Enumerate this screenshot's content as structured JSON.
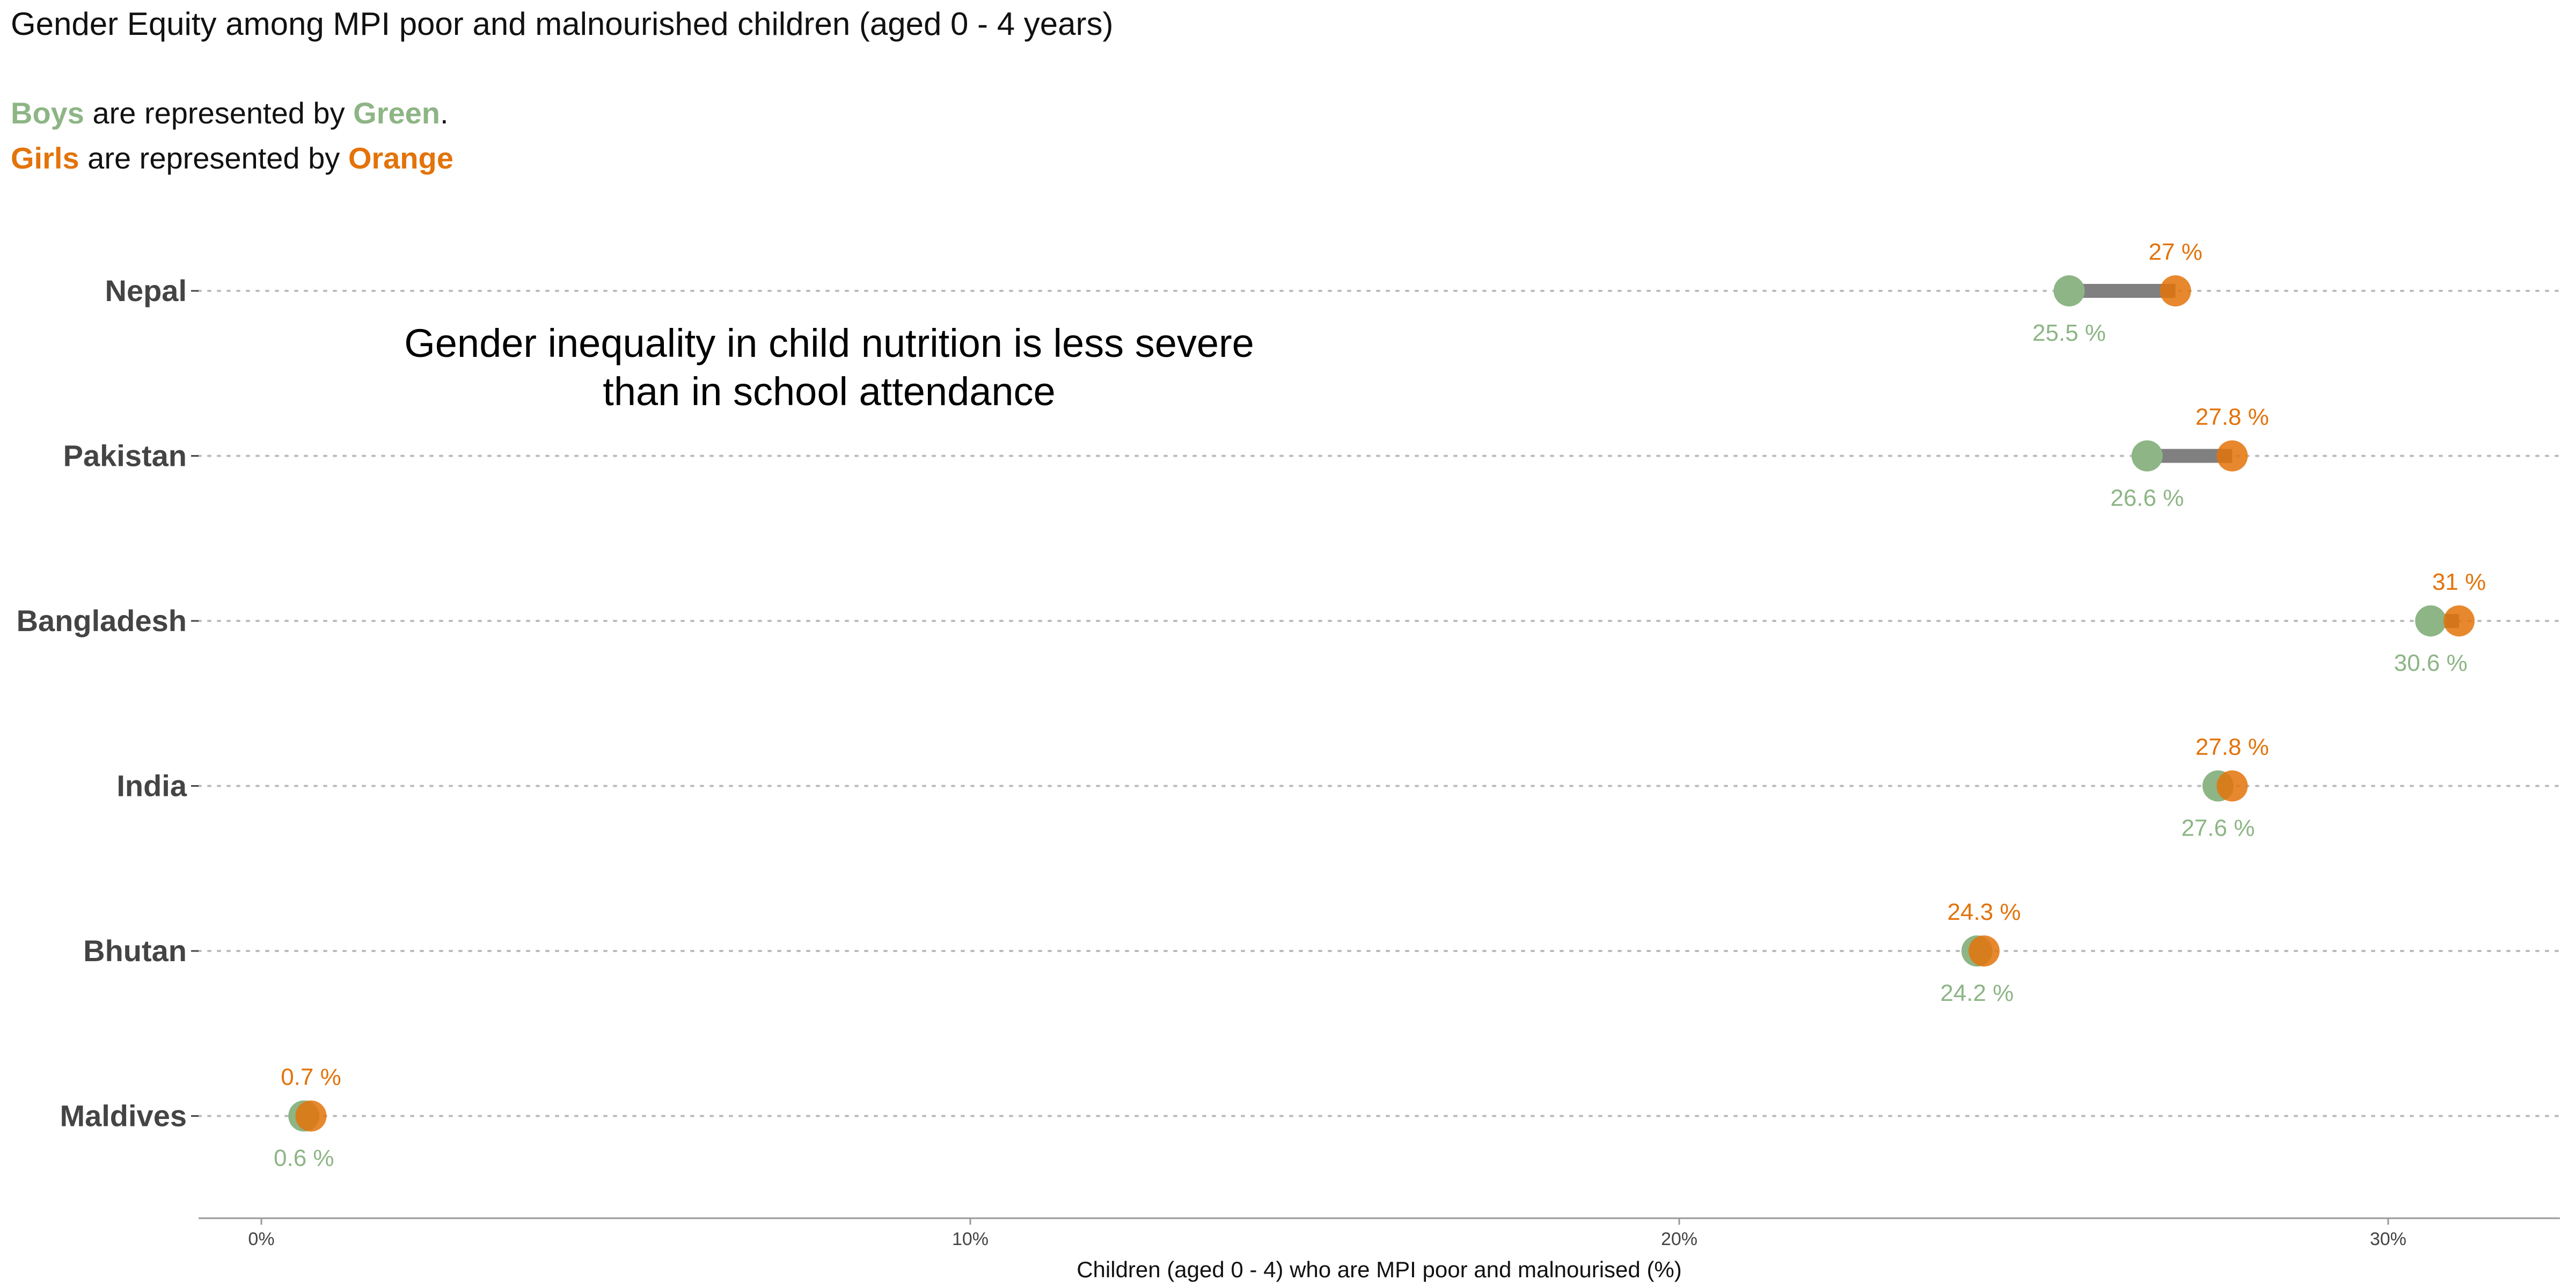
{
  "title": "Gender Equity among MPI poor and malnourished children (aged 0 - 4 years)",
  "legend": {
    "boys": {
      "word": "Boys",
      "middle": " are represented by ",
      "color_word": "Green",
      "end": "."
    },
    "girls": {
      "word": "Girls",
      "middle": " are represented by ",
      "color_word": "Orange",
      "end": ""
    }
  },
  "annotation": {
    "line1": "Gender inequality in child nutrition is less severe",
    "line2": "than in school attendance"
  },
  "colors": {
    "boys": "#8db585",
    "girls": "#e3730a",
    "segment": "#808080",
    "grid": "#bbbbbb",
    "axis": "#999999"
  },
  "chart_data": {
    "type": "dumbbell",
    "title": "Gender Equity among MPI poor and malnourished children (aged 0 - 4 years)",
    "xlabel": "Children (aged 0 - 4) who are MPI poor and malnourised (%)",
    "ylabel": "",
    "xlim": [
      -0.9,
      32.5
    ],
    "xticks": [
      0,
      10,
      20,
      30
    ],
    "xtick_labels": [
      "0%",
      "10%",
      "20%",
      "30%"
    ],
    "categories": [
      "Nepal",
      "Pakistan",
      "Bangladesh",
      "India",
      "Bhutan",
      "Maldives"
    ],
    "series": [
      {
        "name": "Boys",
        "values": [
          25.5,
          26.6,
          30.6,
          27.6,
          24.2,
          0.6
        ],
        "labels": [
          "25.5 %",
          "26.6 %",
          "30.6 %",
          "27.6 %",
          "24.2 %",
          "0.6 %"
        ]
      },
      {
        "name": "Girls",
        "values": [
          27.0,
          27.8,
          31.0,
          27.8,
          24.3,
          0.7
        ],
        "labels": [
          "27 %",
          "27.8 %",
          "31 %",
          "27.8 %",
          "24.3 %",
          "0.7 %"
        ]
      }
    ],
    "grid": "horizontal-dotted",
    "legend": "text-top-left"
  }
}
